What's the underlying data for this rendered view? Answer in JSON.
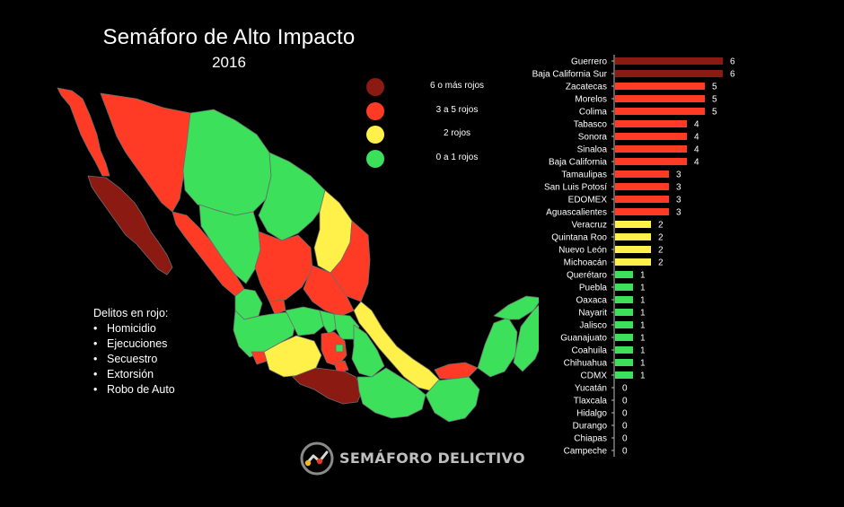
{
  "title": "Semáforo de Alto Impacto",
  "year": "2016",
  "colors": {
    "dark_red": "#8B1A12",
    "red": "#FF3B26",
    "yellow": "#FFF04A",
    "green": "#3CE05A"
  },
  "legend": [
    {
      "label": "6 o más rojos",
      "color": "#8B1A12"
    },
    {
      "label": "3 a 5 rojos",
      "color": "#FF3B26"
    },
    {
      "label": "2 rojos",
      "color": "#FFF04A"
    },
    {
      "label": "0 a 1 rojos",
      "color": "#3CE05A"
    }
  ],
  "delitos": {
    "heading": "Delitos en rojo:",
    "items": [
      "Homicidio",
      "Ejecuciones",
      "Secuestro",
      "Extorsión",
      "Robo de Auto"
    ]
  },
  "logo_text": "SEMÁFORO DELICTIVO",
  "chart_data": {
    "type": "bar",
    "orientation": "horizontal",
    "title": "",
    "xlabel": "",
    "ylabel": "",
    "xlim": [
      0,
      6
    ],
    "grid": false,
    "categories": [
      "Guerrero",
      "Baja California Sur",
      "Zacatecas",
      "Morelos",
      "Colima",
      "Tabasco",
      "Sonora",
      "Sinaloa",
      "Baja California",
      "Tamaulipas",
      "San Luis Potosí",
      "EDOMEX",
      "Aguascalientes",
      "Veracruz",
      "Quintana Roo",
      "Nuevo León",
      "Michoacán",
      "Querétaro",
      "Puebla",
      "Oaxaca",
      "Nayarit",
      "Jalisco",
      "Guanajuato",
      "Coahuila",
      "Chihuahua",
      "CDMX",
      "Yucatán",
      "Tlaxcala",
      "Hidalgo",
      "Durango",
      "Chiapas",
      "Campeche"
    ],
    "values": [
      6,
      6,
      5,
      5,
      5,
      4,
      4,
      4,
      4,
      3,
      3,
      3,
      3,
      2,
      2,
      2,
      2,
      1,
      1,
      1,
      1,
      1,
      1,
      1,
      1,
      1,
      0,
      0,
      0,
      0,
      0,
      0
    ]
  }
}
